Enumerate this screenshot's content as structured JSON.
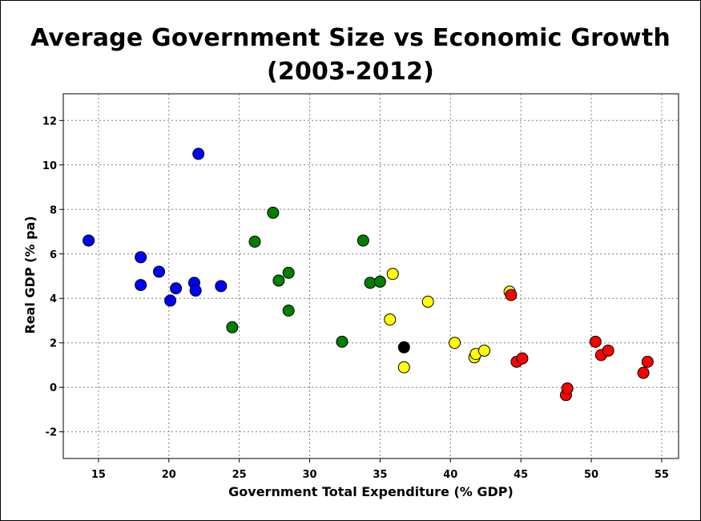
{
  "chart_data": {
    "type": "scatter",
    "title_line1": "Average Government Size vs Economic Growth",
    "title_line2": "(2003-2012)",
    "xlabel": "Government Total Expenditure (% GDP)",
    "ylabel": "Real GDP (% pa)",
    "xlim": [
      12.5,
      56.2
    ],
    "ylim": [
      -3.2,
      13.2
    ],
    "xticks": [
      15,
      20,
      25,
      30,
      35,
      40,
      45,
      50,
      55
    ],
    "yticks": [
      -2,
      0,
      2,
      4,
      6,
      8,
      10,
      12
    ],
    "grid": true,
    "colors": {
      "blue": "#0000ff",
      "green": "#008000",
      "yellow": "#ffff00",
      "black": "#000000",
      "red": "#ff0000",
      "outline": "#000000",
      "grid": "#808080"
    },
    "points": [
      {
        "x": 14.3,
        "y": 6.6,
        "color": "blue"
      },
      {
        "x": 18.0,
        "y": 5.85,
        "color": "blue"
      },
      {
        "x": 18.0,
        "y": 4.6,
        "color": "blue"
      },
      {
        "x": 19.3,
        "y": 5.2,
        "color": "blue"
      },
      {
        "x": 20.1,
        "y": 3.9,
        "color": "blue"
      },
      {
        "x": 20.5,
        "y": 4.45,
        "color": "blue"
      },
      {
        "x": 21.8,
        "y": 4.7,
        "color": "blue"
      },
      {
        "x": 21.9,
        "y": 4.35,
        "color": "blue"
      },
      {
        "x": 22.1,
        "y": 10.5,
        "color": "blue"
      },
      {
        "x": 23.7,
        "y": 4.55,
        "color": "blue"
      },
      {
        "x": 24.5,
        "y": 2.7,
        "color": "green"
      },
      {
        "x": 26.1,
        "y": 6.55,
        "color": "green"
      },
      {
        "x": 27.4,
        "y": 7.85,
        "color": "green"
      },
      {
        "x": 27.8,
        "y": 4.8,
        "color": "green"
      },
      {
        "x": 28.5,
        "y": 5.15,
        "color": "green"
      },
      {
        "x": 28.5,
        "y": 3.45,
        "color": "green"
      },
      {
        "x": 32.3,
        "y": 2.05,
        "color": "green"
      },
      {
        "x": 33.8,
        "y": 6.6,
        "color": "green"
      },
      {
        "x": 34.3,
        "y": 4.7,
        "color": "green"
      },
      {
        "x": 35.0,
        "y": 4.75,
        "color": "green"
      },
      {
        "x": 35.7,
        "y": 3.05,
        "color": "yellow"
      },
      {
        "x": 35.9,
        "y": 5.1,
        "color": "yellow"
      },
      {
        "x": 36.7,
        "y": 1.8,
        "color": "black"
      },
      {
        "x": 36.7,
        "y": 0.9,
        "color": "yellow"
      },
      {
        "x": 38.4,
        "y": 3.85,
        "color": "yellow"
      },
      {
        "x": 40.3,
        "y": 2.0,
        "color": "yellow"
      },
      {
        "x": 41.7,
        "y": 1.35,
        "color": "yellow"
      },
      {
        "x": 41.8,
        "y": 1.5,
        "color": "yellow"
      },
      {
        "x": 42.4,
        "y": 1.65,
        "color": "yellow"
      },
      {
        "x": 44.2,
        "y": 4.3,
        "color": "yellow"
      },
      {
        "x": 44.3,
        "y": 4.15,
        "color": "red"
      },
      {
        "x": 44.7,
        "y": 1.15,
        "color": "red"
      },
      {
        "x": 45.1,
        "y": 1.3,
        "color": "red"
      },
      {
        "x": 48.2,
        "y": -0.35,
        "color": "red"
      },
      {
        "x": 48.3,
        "y": -0.05,
        "color": "red"
      },
      {
        "x": 50.3,
        "y": 2.05,
        "color": "red"
      },
      {
        "x": 50.7,
        "y": 1.45,
        "color": "red"
      },
      {
        "x": 51.2,
        "y": 1.65,
        "color": "red"
      },
      {
        "x": 53.7,
        "y": 0.65,
        "color": "red"
      },
      {
        "x": 54.0,
        "y": 1.15,
        "color": "red"
      }
    ]
  }
}
